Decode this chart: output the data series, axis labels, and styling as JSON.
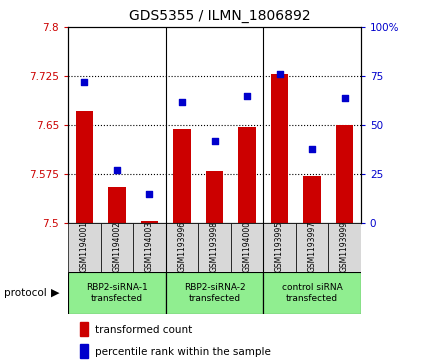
{
  "title": "GDS5355 / ILMN_1806892",
  "samples": [
    "GSM1194001",
    "GSM1194002",
    "GSM1194003",
    "GSM1193996",
    "GSM1193998",
    "GSM1194000",
    "GSM1193995",
    "GSM1193997",
    "GSM1193999"
  ],
  "bar_values": [
    7.672,
    7.555,
    7.503,
    7.645,
    7.58,
    7.648,
    7.728,
    7.572,
    7.65
  ],
  "blue_values": [
    72,
    27,
    15,
    62,
    42,
    65,
    76,
    38,
    64
  ],
  "bar_base": 7.5,
  "ylim_left": [
    7.5,
    7.8
  ],
  "ylim_right": [
    0,
    100
  ],
  "yticks_left": [
    7.5,
    7.575,
    7.65,
    7.725,
    7.8
  ],
  "ytick_labels_left": [
    "7.5",
    "7.575",
    "7.65",
    "7.725",
    "7.8"
  ],
  "yticks_right": [
    0,
    25,
    50,
    75,
    100
  ],
  "ytick_labels_right": [
    "0",
    "25",
    "50",
    "75",
    "100%"
  ],
  "groups": [
    {
      "label": "RBP2-siRNA-1\ntransfected",
      "start": 0,
      "end": 3,
      "color": "#90EE90"
    },
    {
      "label": "RBP2-siRNA-2\ntransfected",
      "start": 3,
      "end": 6,
      "color": "#90EE90"
    },
    {
      "label": "control siRNA\ntransfected",
      "start": 6,
      "end": 9,
      "color": "#90EE90"
    }
  ],
  "bar_color": "#CC0000",
  "blue_color": "#0000CC",
  "protocol_label": "protocol",
  "legend_bar_label": "transformed count",
  "legend_blue_label": "percentile rank within the sample",
  "bg_color": "#D8D8D8",
  "tick_color_left": "#CC0000",
  "tick_color_right": "#0000CC"
}
